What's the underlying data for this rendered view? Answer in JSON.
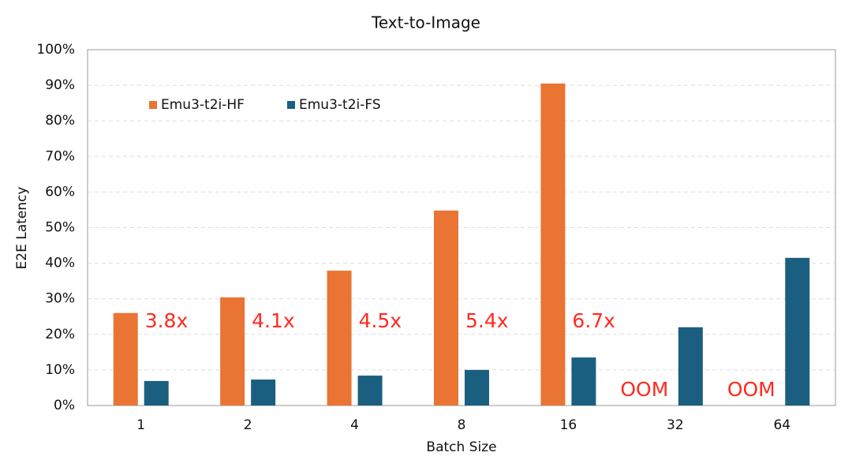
{
  "chart_data": {
    "type": "bar",
    "title": "Text-to-Image",
    "x_label": "Batch Size",
    "y_label": "E2E Latency",
    "categories": [
      "1",
      "2",
      "4",
      "8",
      "16",
      "32",
      "64"
    ],
    "series": [
      {
        "name": "Emu3-t2i-HF",
        "color": "#ea7433",
        "values": [
          26,
          30.4,
          37.9,
          54.8,
          90.5,
          null,
          null
        ]
      },
      {
        "name": "Emu3-t2i-FS",
        "color": "#1b5f80",
        "values": [
          6.9,
          7.3,
          8.4,
          10.0,
          13.5,
          22.0,
          41.5
        ]
      }
    ],
    "annotations": [
      "3.8x",
      "4.1x",
      "4.5x",
      "5.4x",
      "6.7x",
      "OOM",
      "OOM"
    ],
    "annotation_color": "#ff2a1f",
    "ylim": [
      0,
      100
    ],
    "yticks": [
      {
        "value": 0,
        "label": "0%"
      },
      {
        "value": 10,
        "label": "10%"
      },
      {
        "value": 20,
        "label": "20%"
      },
      {
        "value": 30,
        "label": "30%"
      },
      {
        "value": 40,
        "label": "40%"
      },
      {
        "value": 50,
        "label": "50%"
      },
      {
        "value": 60,
        "label": "60%"
      },
      {
        "value": 70,
        "label": "70%"
      },
      {
        "value": 80,
        "label": "80%"
      },
      {
        "value": 90,
        "label": "90%"
      },
      {
        "value": 100,
        "label": "100%"
      }
    ],
    "grid": true,
    "legend": "upper left"
  }
}
